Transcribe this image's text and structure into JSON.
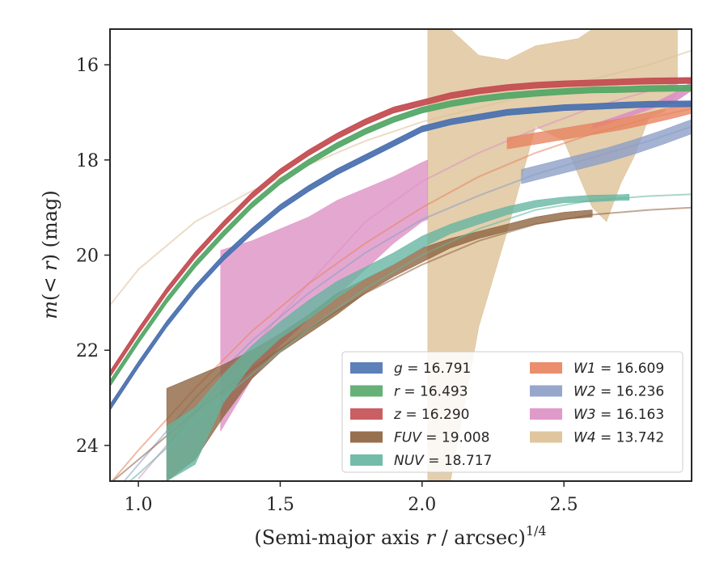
{
  "chart_data": {
    "type": "line",
    "xlabel": "(Semi-major axis r / arcsec)1/4",
    "xlabel_parts": [
      "(Semi-major axis ",
      "r",
      " / arcsec)",
      "1/4"
    ],
    "ylabel": "m(<r) (mag)",
    "ylabel_parts": [
      "m",
      "(< ",
      "r",
      ") (mag)"
    ],
    "xlim": [
      0.9,
      2.95
    ],
    "ylim": [
      24.75,
      15.25
    ],
    "y_inverted": true,
    "x_ticks": [
      1.0,
      1.5,
      2.0,
      2.5
    ],
    "x_tick_labels": [
      "1.0",
      "1.5",
      "2.0",
      "2.5"
    ],
    "y_ticks": [
      16,
      18,
      20,
      22,
      24
    ],
    "y_tick_labels": [
      "16",
      "18",
      "20",
      "22",
      "24"
    ],
    "grid": false,
    "legend_position": "lower-right",
    "legend_columns": 2,
    "series": [
      {
        "name": "g = 16.791",
        "label_var": "g",
        "label_val": "= 16.791",
        "color": "#4c72b0",
        "band_width": 0.06,
        "band_x": [
          0.9,
          1.0,
          1.1,
          1.2,
          1.3,
          1.4,
          1.5,
          1.6,
          1.7,
          1.8,
          1.9,
          2.0,
          2.1,
          2.2,
          2.3,
          2.4,
          2.5,
          2.6,
          2.7,
          2.8,
          2.95
        ],
        "band_y": [
          23.2,
          22.3,
          21.45,
          20.7,
          20.05,
          19.5,
          19.0,
          18.6,
          18.25,
          17.95,
          17.65,
          17.35,
          17.2,
          17.1,
          17.0,
          16.95,
          16.9,
          16.88,
          16.85,
          16.83,
          16.82
        ],
        "model_x": [
          2.8,
          2.95
        ],
        "model_y": [
          16.8,
          16.8
        ]
      },
      {
        "name": "r = 16.493",
        "label_var": "r",
        "label_val": "= 16.493",
        "color": "#55a868",
        "band_width": 0.06,
        "band_x": [
          0.9,
          1.0,
          1.1,
          1.2,
          1.3,
          1.4,
          1.5,
          1.6,
          1.7,
          1.8,
          1.9,
          2.0,
          2.1,
          2.2,
          2.3,
          2.4,
          2.5,
          2.6,
          2.7,
          2.8,
          2.95
        ],
        "band_y": [
          22.7,
          21.8,
          20.95,
          20.2,
          19.55,
          18.95,
          18.45,
          18.05,
          17.7,
          17.4,
          17.15,
          16.95,
          16.82,
          16.72,
          16.65,
          16.6,
          16.56,
          16.53,
          16.52,
          16.5,
          16.49
        ],
        "model_x": [
          2.85,
          2.95
        ],
        "model_y": [
          16.49,
          16.49
        ]
      },
      {
        "name": "z = 16.290",
        "label_var": "z",
        "label_val": "= 16.290",
        "color": "#c44e52",
        "band_width": 0.06,
        "band_x": [
          0.9,
          1.0,
          1.1,
          1.2,
          1.3,
          1.4,
          1.5,
          1.6,
          1.7,
          1.8,
          1.9,
          2.0,
          2.1,
          2.2,
          2.3,
          2.4,
          2.5,
          2.6,
          2.7,
          2.8,
          2.95
        ],
        "band_y": [
          22.5,
          21.6,
          20.75,
          20.0,
          19.35,
          18.75,
          18.25,
          17.85,
          17.5,
          17.2,
          16.95,
          16.8,
          16.65,
          16.55,
          16.48,
          16.43,
          16.4,
          16.38,
          16.36,
          16.34,
          16.33
        ],
        "model_x": [
          2.85,
          2.95
        ],
        "model_y": [
          16.3,
          16.29
        ]
      },
      {
        "name": "FUV = 19.008",
        "label_var": "FUV",
        "label_val": "= 19.008",
        "color": "#8c613c",
        "band_x": [
          1.1,
          1.2,
          1.3,
          1.4,
          1.5,
          1.6,
          1.7,
          1.8,
          1.9,
          2.0,
          2.1,
          2.2,
          2.3,
          2.4,
          2.5,
          2.6
        ],
        "band_lo": [
          22.8,
          22.55,
          22.3,
          22.0,
          21.65,
          21.25,
          20.8,
          20.5,
          20.2,
          19.85,
          19.65,
          19.5,
          19.35,
          19.2,
          19.1,
          19.05
        ],
        "band_hi": [
          24.75,
          24.3,
          23.4,
          22.6,
          22.05,
          21.65,
          21.25,
          20.8,
          20.45,
          20.15,
          19.85,
          19.65,
          19.5,
          19.35,
          19.25,
          19.2
        ],
        "model_x": [
          0.9,
          1.0,
          1.2,
          1.4,
          1.6,
          1.8,
          2.0,
          2.2,
          2.4,
          2.6,
          2.8,
          2.95
        ],
        "model_y": [
          24.8,
          24.3,
          23.3,
          22.4,
          21.55,
          20.8,
          20.2,
          19.7,
          19.35,
          19.15,
          19.05,
          19.0
        ]
      },
      {
        "name": "NUV = 18.717",
        "label_var": "NUV",
        "label_val": "= 18.717",
        "color": "#64b5a0",
        "band_x": [
          1.1,
          1.2,
          1.3,
          1.4,
          1.5,
          1.6,
          1.7,
          1.8,
          1.9,
          2.0,
          2.1,
          2.2,
          2.3,
          2.4,
          2.5,
          2.6,
          2.7,
          2.73
        ],
        "band_lo": [
          23.6,
          23.2,
          22.5,
          21.9,
          21.4,
          20.95,
          20.55,
          20.25,
          19.95,
          19.6,
          19.35,
          19.15,
          18.98,
          18.85,
          18.78,
          18.74,
          18.73,
          18.72
        ],
        "band_hi": [
          24.75,
          24.4,
          23.1,
          22.3,
          21.75,
          21.35,
          20.9,
          20.5,
          20.2,
          19.85,
          19.55,
          19.35,
          19.15,
          19.0,
          18.9,
          18.88,
          18.85,
          18.85
        ],
        "model_x": [
          0.9,
          1.0,
          1.2,
          1.4,
          1.6,
          1.8,
          2.0,
          2.2,
          2.4,
          2.6,
          2.8,
          2.95
        ],
        "model_y": [
          25.1,
          24.6,
          23.5,
          22.5,
          21.55,
          20.7,
          20.0,
          19.45,
          19.05,
          18.85,
          18.76,
          18.72
        ]
      },
      {
        "name": "W1 = 16.609",
        "label_var": "W1",
        "label_val": "= 16.609",
        "color": "#e8825e",
        "band_width": 0.12,
        "band_x": [
          2.3,
          2.4,
          2.5,
          2.6,
          2.7,
          2.8,
          2.9,
          2.95
        ],
        "band_y": [
          17.65,
          17.55,
          17.45,
          17.35,
          17.25,
          17.12,
          16.98,
          16.9
        ],
        "model_x": [
          0.9,
          1.0,
          1.2,
          1.4,
          1.6,
          1.8,
          2.0,
          2.2,
          2.4,
          2.6,
          2.8,
          2.95
        ],
        "model_y": [
          24.8,
          24.1,
          22.8,
          21.6,
          20.6,
          19.75,
          19.0,
          18.35,
          17.85,
          17.45,
          17.12,
          16.92
        ]
      },
      {
        "name": "W2 = 16.236",
        "label_var": "W2",
        "label_val": "= 16.236",
        "color": "#8c9dc6",
        "band_width": 0.15,
        "band_x": [
          2.35,
          2.45,
          2.55,
          2.65,
          2.75,
          2.85,
          2.95
        ],
        "band_y": [
          18.35,
          18.2,
          18.05,
          17.9,
          17.72,
          17.52,
          17.3
        ],
        "model_x": [
          0.9,
          1.0,
          1.2,
          1.4,
          1.6,
          1.8,
          2.0,
          2.2,
          2.4,
          2.6,
          2.8,
          2.95
        ],
        "model_y": [
          25.1,
          24.4,
          23.0,
          21.8,
          20.8,
          19.95,
          19.25,
          18.75,
          18.3,
          17.95,
          17.6,
          17.3
        ]
      },
      {
        "name": "W3 = 16.163",
        "label_var": "W3",
        "label_val": "= 16.163",
        "color": "#dd8fc3",
        "band_x": [
          1.29,
          1.4,
          1.5,
          1.6,
          1.7,
          1.8,
          1.9,
          2.0,
          2.02
        ],
        "band_lo": [
          19.9,
          19.7,
          19.45,
          19.2,
          18.85,
          18.6,
          18.35,
          18.05,
          18.0
        ],
        "band_hi": [
          23.7,
          22.6,
          21.9,
          21.35,
          20.85,
          20.3,
          19.75,
          19.3,
          19.25
        ],
        "band2_x": [
          2.6,
          2.7,
          2.8,
          2.9,
          2.95
        ],
        "band2_lo": [
          17.25,
          17.05,
          16.85,
          16.55,
          16.35
        ],
        "band2_hi": [
          17.35,
          17.15,
          16.95,
          16.75,
          16.55
        ],
        "model_x": [
          1.0,
          1.1,
          1.2,
          1.4,
          1.6,
          1.8,
          2.0,
          2.2,
          2.4,
          2.6,
          2.8,
          2.95
        ],
        "model_y": [
          24.7,
          24.0,
          23.3,
          21.95,
          20.6,
          19.3,
          18.45,
          17.85,
          17.35,
          16.9,
          16.55,
          16.3
        ]
      },
      {
        "name": "W4 = 13.742",
        "label_var": "W4",
        "label_val": "= 13.742",
        "color": "#dcc095",
        "band_x": [
          2.02,
          2.1,
          2.2,
          2.3,
          2.4,
          2.5,
          2.55,
          2.6,
          2.65,
          2.7,
          2.75,
          2.8,
          2.85,
          2.9
        ],
        "band_lo": [
          15.25,
          15.25,
          15.8,
          15.9,
          15.6,
          15.5,
          15.45,
          15.25,
          15.25,
          15.25,
          15.25,
          15.25,
          15.25,
          15.25
        ],
        "band_hi": [
          24.75,
          24.75,
          21.5,
          19.5,
          17.3,
          17.6,
          18.3,
          19.0,
          19.3,
          18.5,
          17.9,
          17.1,
          17.0,
          16.6
        ],
        "model_x": [
          0.9,
          1.0,
          1.2,
          1.4,
          1.6,
          1.8,
          2.0,
          2.2,
          2.4,
          2.6,
          2.8,
          2.95
        ],
        "model_y": [
          21.05,
          20.3,
          19.3,
          18.65,
          18.1,
          17.6,
          17.2,
          16.9,
          16.6,
          16.3,
          16.0,
          15.7
        ]
      }
    ]
  }
}
